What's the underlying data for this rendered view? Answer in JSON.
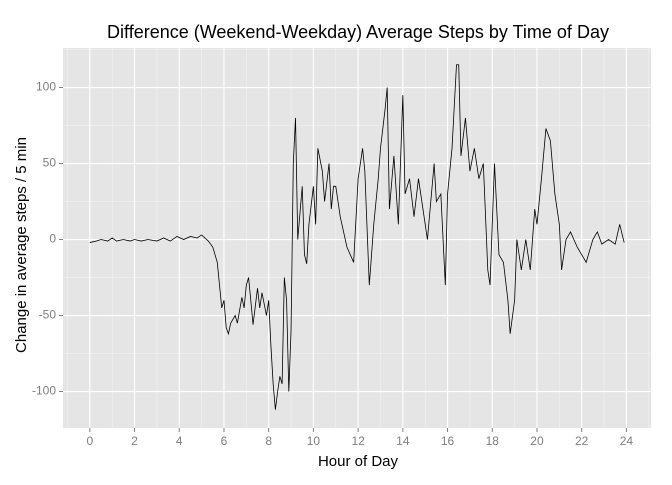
{
  "chart_data": {
    "type": "line",
    "title": "Difference (Weekend-Weekday) Average Steps by Time of Day",
    "x_label": "Hour of Day",
    "y_label": "Change in average steps / 5 min",
    "x": [
      0,
      0.3,
      0.5,
      0.8,
      1,
      1.2,
      1.5,
      1.8,
      2,
      2.3,
      2.6,
      3,
      3.3,
      3.6,
      3.9,
      4.2,
      4.5,
      4.8,
      5,
      5.3,
      5.5,
      5.7,
      5.8,
      5.9,
      6,
      6.1,
      6.2,
      6.3,
      6.5,
      6.6,
      6.8,
      6.9,
      7,
      7.1,
      7.2,
      7.3,
      7.5,
      7.6,
      7.7,
      7.9,
      8,
      8.1,
      8.2,
      8.3,
      8.4,
      8.5,
      8.6,
      8.7,
      8.8,
      8.9,
      9,
      9.1,
      9.2,
      9.3,
      9.5,
      9.6,
      9.7,
      9.8,
      10,
      10.1,
      10.2,
      10.4,
      10.5,
      10.7,
      10.8,
      10.9,
      11,
      11.2,
      11.5,
      11.8,
      12,
      12.2,
      12.3,
      12.5,
      12.7,
      12.9,
      13,
      13.2,
      13.3,
      13.4,
      13.6,
      13.8,
      14,
      14.1,
      14.3,
      14.5,
      14.7,
      14.9,
      15.1,
      15.4,
      15.5,
      15.7,
      15.9,
      16,
      16.2,
      16.4,
      16.5,
      16.6,
      16.8,
      17,
      17.2,
      17.4,
      17.6,
      17.8,
      17.9,
      18.1,
      18.3,
      18.5,
      18.7,
      18.8,
      19,
      19.1,
      19.3,
      19.5,
      19.7,
      19.9,
      20,
      20.2,
      20.4,
      20.6,
      20.8,
      21,
      21.1,
      21.3,
      21.5,
      21.8,
      22,
      22.2,
      22.5,
      22.7,
      22.9,
      23.2,
      23.5,
      23.7,
      23.9
    ],
    "series": [
      {
        "color": "#000000",
        "values": [
          -2,
          -1,
          0,
          -1,
          1,
          -1,
          0,
          -1,
          0,
          -1,
          0,
          -1,
          1,
          -1,
          2,
          0,
          2,
          1,
          3,
          -1,
          -5,
          -15,
          -30,
          -45,
          -40,
          -58,
          -62,
          -55,
          -50,
          -55,
          -38,
          -45,
          -30,
          -25,
          -40,
          -56,
          -32,
          -45,
          -35,
          -50,
          -40,
          -70,
          -95,
          -112,
          -100,
          -90,
          -95,
          -25,
          -40,
          -100,
          -60,
          50,
          80,
          0,
          35,
          -10,
          -16,
          10,
          35,
          10,
          60,
          45,
          25,
          50,
          20,
          35,
          35,
          15,
          -5,
          -15,
          40,
          60,
          45,
          -30,
          10,
          40,
          60,
          85,
          100,
          20,
          55,
          10,
          95,
          30,
          40,
          15,
          40,
          20,
          0,
          50,
          25,
          30,
          -30,
          30,
          60,
          115,
          115,
          55,
          80,
          45,
          60,
          40,
          50,
          -20,
          -30,
          50,
          -10,
          -15,
          -40,
          -62,
          -40,
          0,
          -20,
          0,
          -20,
          20,
          10,
          40,
          73,
          65,
          30,
          10,
          -20,
          0,
          5,
          -5,
          -10,
          -15,
          0,
          5,
          -3,
          0,
          -3,
          10,
          -2
        ]
      }
    ],
    "xlim": [
      -1.2,
      25.1
    ],
    "xticks": [
      0,
      2,
      4,
      6,
      8,
      10,
      12,
      14,
      16,
      18,
      20,
      22,
      24
    ],
    "ylim": [
      -124,
      126
    ],
    "yticks": [
      -100,
      -50,
      0,
      50,
      100
    ],
    "grid": true,
    "minor_grid": true
  }
}
